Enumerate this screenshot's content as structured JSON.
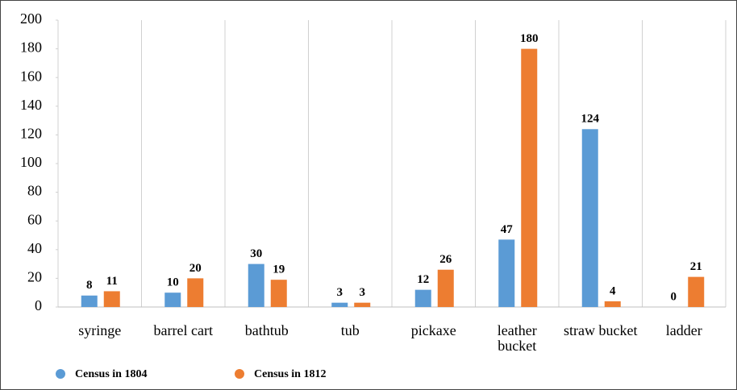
{
  "chart_data": {
    "type": "bar",
    "categories": [
      "syringe",
      "barrel cart",
      "bathtub",
      "tub",
      "pickaxe",
      "leather bucket",
      "straw bucket",
      "ladder"
    ],
    "series": [
      {
        "name": "Census in 1804",
        "color": "#5b9bd5",
        "values": [
          8,
          10,
          30,
          3,
          12,
          47,
          124,
          0
        ]
      },
      {
        "name": "Census in 1812",
        "color": "#ed7d31",
        "values": [
          11,
          20,
          19,
          3,
          26,
          180,
          4,
          21
        ]
      }
    ],
    "ylim": [
      0,
      200
    ],
    "yticks": [
      0,
      20,
      40,
      60,
      80,
      100,
      120,
      140,
      160,
      180,
      200
    ],
    "grid": "vertical",
    "legend": "bottom-left"
  }
}
